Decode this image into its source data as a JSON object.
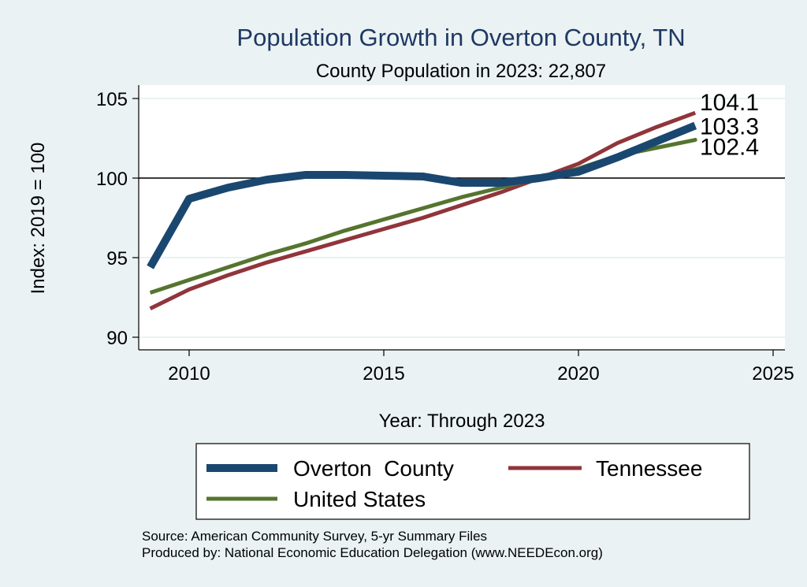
{
  "chart_data": {
    "type": "line",
    "title": "Population Growth in Overton County, TN",
    "subtitle": "County Population in 2023: 22,807",
    "xlabel": "Year: Through 2023",
    "ylabel": "Index: 2019 = 100",
    "xlim": [
      2009,
      2025
    ],
    "ylim": [
      90,
      105
    ],
    "xticks": [
      2010,
      2015,
      2020,
      2025
    ],
    "yticks": [
      90,
      95,
      100,
      105
    ],
    "reference_line": 100,
    "grid": true,
    "legend_position": "bottom",
    "series": [
      {
        "name": "Overton  County",
        "color": "#1a476f",
        "x": [
          2009,
          2010,
          2011,
          2012,
          2013,
          2014,
          2015,
          2016,
          2017,
          2018,
          2019,
          2020,
          2021,
          2022,
          2023
        ],
        "values": [
          94.4,
          98.7,
          99.4,
          99.9,
          100.2,
          100.2,
          100.15,
          100.1,
          99.7,
          99.7,
          100.0,
          100.4,
          101.3,
          102.3,
          103.3
        ],
        "end_label": "103.3"
      },
      {
        "name": "Tennessee",
        "color": "#90353b",
        "x": [
          2009,
          2010,
          2011,
          2012,
          2013,
          2014,
          2015,
          2016,
          2017,
          2018,
          2019,
          2020,
          2021,
          2022,
          2023
        ],
        "values": [
          91.8,
          93.0,
          93.9,
          94.7,
          95.4,
          96.1,
          96.8,
          97.5,
          98.3,
          99.1,
          100.0,
          100.9,
          102.2,
          103.2,
          104.1
        ],
        "end_label": "104.1"
      },
      {
        "name": "United States",
        "color": "#55752f",
        "x": [
          2009,
          2010,
          2011,
          2012,
          2013,
          2014,
          2015,
          2016,
          2017,
          2018,
          2019,
          2020,
          2021,
          2022,
          2023
        ],
        "values": [
          92.8,
          93.6,
          94.4,
          95.2,
          95.9,
          96.7,
          97.4,
          98.1,
          98.8,
          99.4,
          100.0,
          100.6,
          101.4,
          101.9,
          102.4
        ],
        "end_label": "102.4"
      }
    ]
  },
  "footer": {
    "source": "Source: American Community Survey, 5-yr Summary Files",
    "produced_by": "Produced by: National Economic Education Delegation (www.NEEDEcon.org)"
  }
}
